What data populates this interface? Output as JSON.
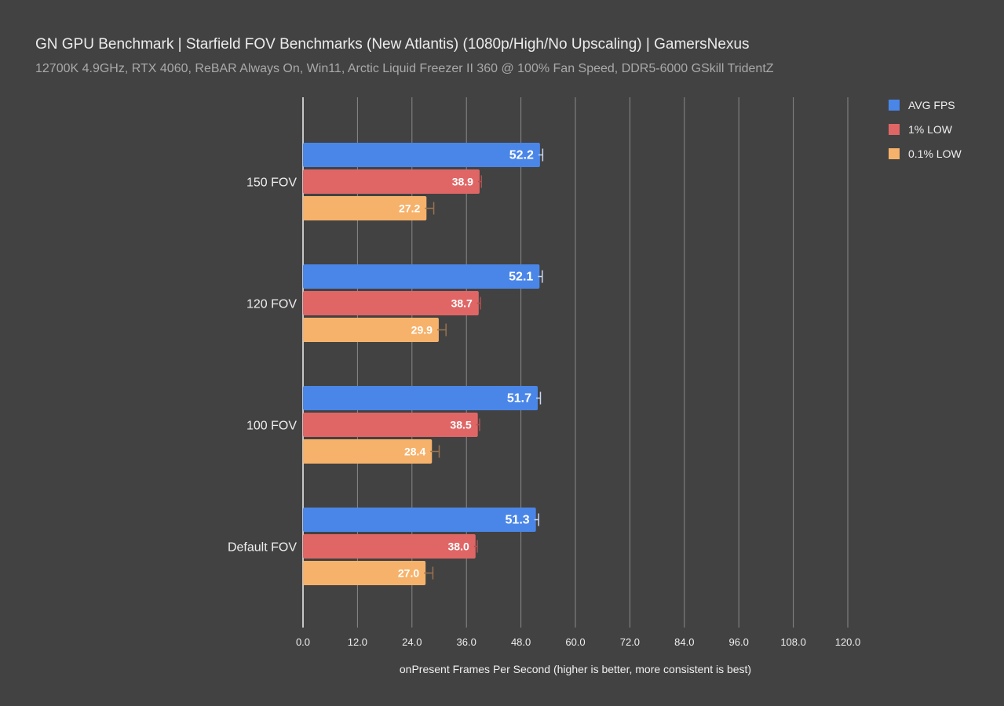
{
  "chart_data": {
    "type": "bar",
    "orientation": "horizontal",
    "title": "GN GPU Benchmark | Starfield FOV Benchmarks (New Atlantis) (1080p/High/No Upscaling) | GamersNexus",
    "subtitle": "12700K 4.9GHz, RTX 4060, ReBAR Always On, Win11, Arctic Liquid Freezer II 360 @ 100% Fan Speed, DDR5-6000 GSkill TridentZ",
    "xlabel": "onPresent Frames Per Second (higher is better, more consistent is best)",
    "ylabel": "",
    "xlim": [
      0,
      120
    ],
    "xticks": [
      "0.0",
      "12.0",
      "24.0",
      "36.0",
      "48.0",
      "60.0",
      "72.0",
      "84.0",
      "96.0",
      "108.0",
      "120.0"
    ],
    "grid": true,
    "legend_position": "top-right",
    "categories": [
      "150 FOV",
      "120 FOV",
      "100 FOV",
      "Default FOV"
    ],
    "series": [
      {
        "name": "AVG FPS",
        "color": "#4a86e8",
        "values": [
          52.2,
          52.1,
          51.7,
          51.3
        ],
        "labels": [
          "52.2",
          "52.1",
          "51.7",
          "51.3"
        ],
        "error": [
          0.6,
          0.6,
          0.6,
          0.6
        ]
      },
      {
        "name": "1% LOW",
        "color": "#e06666",
        "values": [
          38.9,
          38.7,
          38.5,
          38.0
        ],
        "labels": [
          "38.9",
          "38.7",
          "38.5",
          "38.0"
        ],
        "error": [
          0.4,
          0.4,
          0.4,
          0.4
        ]
      },
      {
        "name": "0.1% LOW",
        "color": "#f6b26b",
        "values": [
          27.2,
          29.9,
          28.4,
          27.0
        ],
        "labels": [
          "27.2",
          "29.9",
          "28.4",
          "27.0"
        ],
        "error": [
          1.6,
          1.6,
          1.6,
          1.6
        ]
      }
    ]
  }
}
